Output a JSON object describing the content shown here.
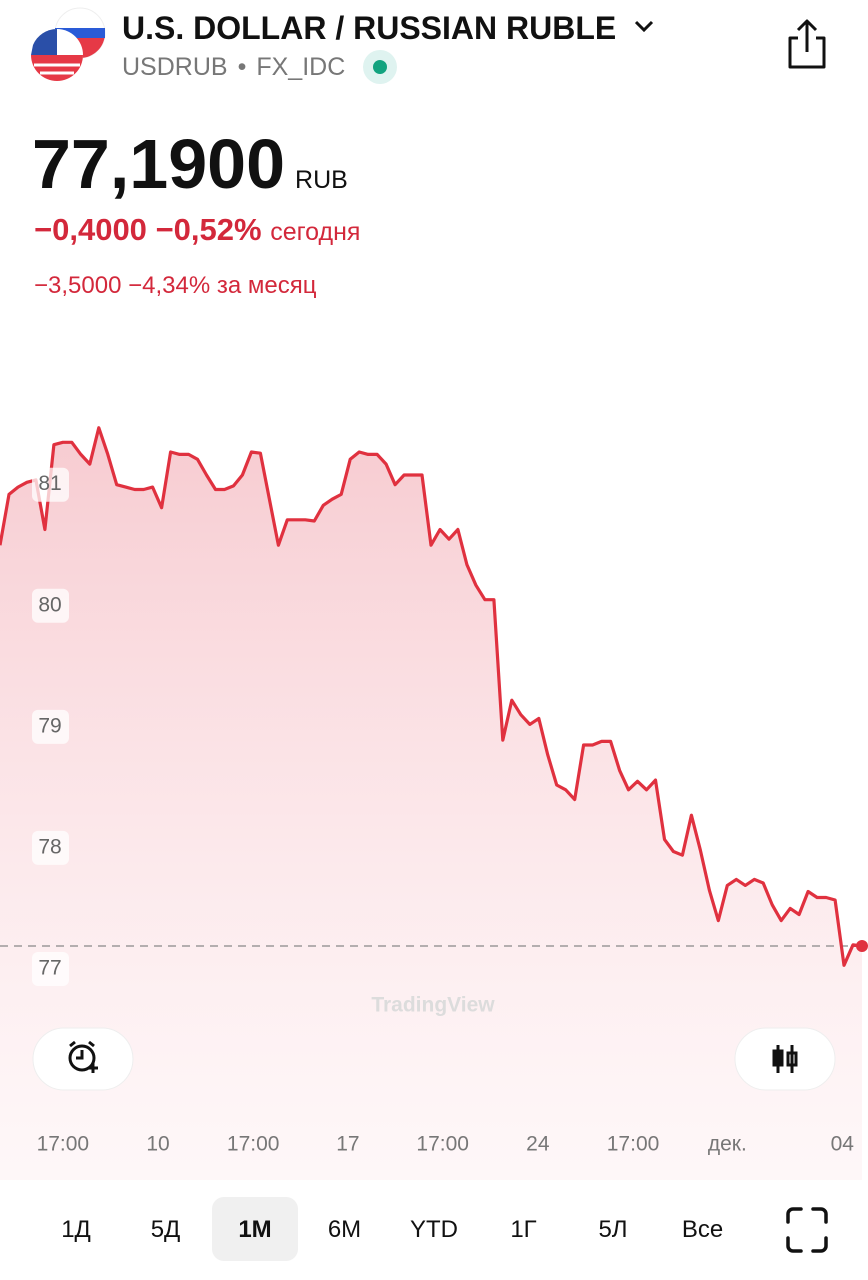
{
  "header": {
    "title": "U.S. DOLLAR / RUSSIAN RUBLE",
    "symbol": "USDRUB",
    "exchange": "FX_IDC",
    "price": "77,1900",
    "currency": "RUB",
    "day_change": "−0,4000",
    "day_change_pct": "−0,52%",
    "day_label": "сегодня",
    "month_change": "−3,5000",
    "month_change_pct": "−4,34%",
    "month_label": "за месяц"
  },
  "chart_data": {
    "type": "line",
    "watermark": "TradingView",
    "series": [
      {
        "color": "#e0313f",
        "values": [
          80.5,
          80.92,
          80.98,
          81.02,
          81.04,
          80.63,
          81.33,
          81.35,
          81.35,
          81.25,
          81.17,
          81.47,
          81.25,
          81.0,
          80.98,
          80.96,
          80.96,
          80.98,
          80.81,
          81.27,
          81.25,
          81.25,
          81.21,
          81.08,
          80.96,
          80.96,
          80.99,
          81.08,
          81.27,
          81.26,
          80.88,
          80.5,
          80.71,
          80.71,
          80.71,
          80.7,
          80.83,
          80.88,
          80.92,
          81.21,
          81.27,
          81.25,
          81.25,
          81.17,
          81.0,
          81.08,
          81.08,
          81.08,
          80.5,
          80.63,
          80.55,
          80.63,
          80.34,
          80.17,
          80.05,
          80.05,
          78.89,
          79.22,
          79.1,
          79.02,
          79.07,
          78.77,
          78.52,
          78.48,
          78.4,
          78.85,
          78.85,
          78.88,
          78.88,
          78.64,
          78.48,
          78.55,
          78.48,
          78.56,
          78.07,
          77.97,
          77.94,
          78.27,
          77.98,
          77.65,
          77.4,
          77.69,
          77.74,
          77.69,
          77.74,
          77.71,
          77.53,
          77.4,
          77.5,
          77.45,
          77.64,
          77.59,
          77.59,
          77.57,
          77.03,
          77.2,
          77.19
        ]
      }
    ],
    "xlim": [
      0,
      96
    ],
    "ylim": [
      75.67,
      82.03
    ],
    "yticks": [
      77,
      78,
      79,
      80,
      81
    ],
    "xticks": [
      {
        "value": 7.0,
        "label": "17:00"
      },
      {
        "value": 17.6,
        "label": "10"
      },
      {
        "value": 28.2,
        "label": "17:00"
      },
      {
        "value": 38.75,
        "label": "17"
      },
      {
        "value": 49.3,
        "label": "17:00"
      },
      {
        "value": 59.9,
        "label": "24"
      },
      {
        "value": 70.5,
        "label": "17:00"
      },
      {
        "value": 81.0,
        "label": "дек."
      },
      {
        "value": 93.8,
        "label": "04"
      }
    ]
  },
  "periods": {
    "items": [
      "1Д",
      "5Д",
      "1М",
      "6М",
      "YTD",
      "1Г",
      "5Л",
      "Все"
    ],
    "selected": 2
  }
}
